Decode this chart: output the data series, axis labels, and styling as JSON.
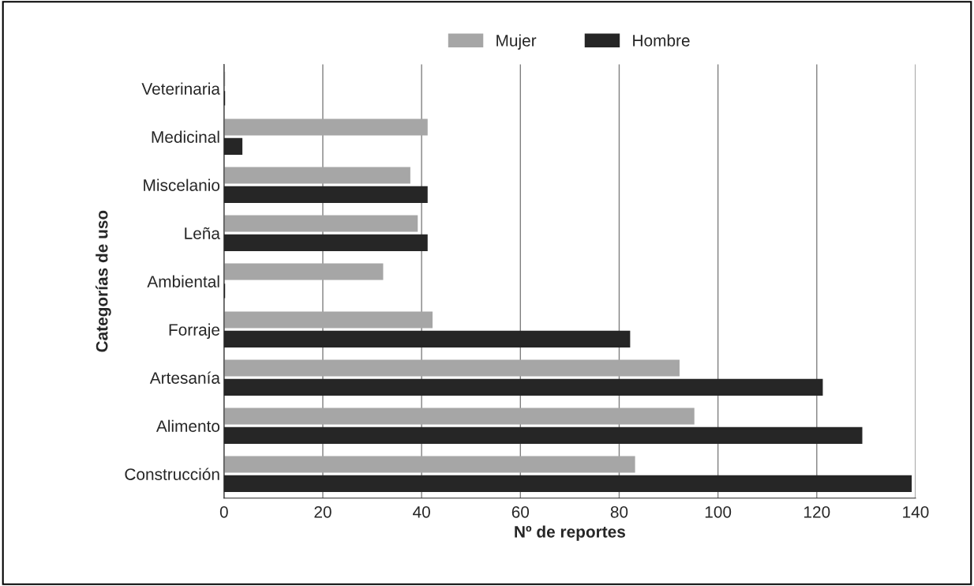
{
  "chart_data": {
    "type": "bar",
    "orientation": "horizontal",
    "xlabel": "Nº de reportes",
    "ylabel": "Categorías de uso",
    "categories": [
      "Veterinaria",
      "Medicinal",
      "Miscelanio",
      "Leña",
      "Ambiental",
      "Forraje",
      "Artesanía",
      "Alimento",
      "Construcción"
    ],
    "series": [
      {
        "name": "Mujer",
        "color": "#a6a6a6",
        "values": [
          0,
          41,
          37.5,
          39,
          32,
          42,
          92,
          95,
          83
        ]
      },
      {
        "name": "Hombre",
        "color": "#262626",
        "values": [
          0,
          3.5,
          41,
          41,
          0,
          82,
          121,
          129,
          139
        ]
      }
    ],
    "xlim": [
      0,
      140
    ],
    "xticks": [
      0,
      20,
      40,
      60,
      80,
      100,
      120,
      140
    ],
    "grid": "x",
    "legend": "top"
  }
}
